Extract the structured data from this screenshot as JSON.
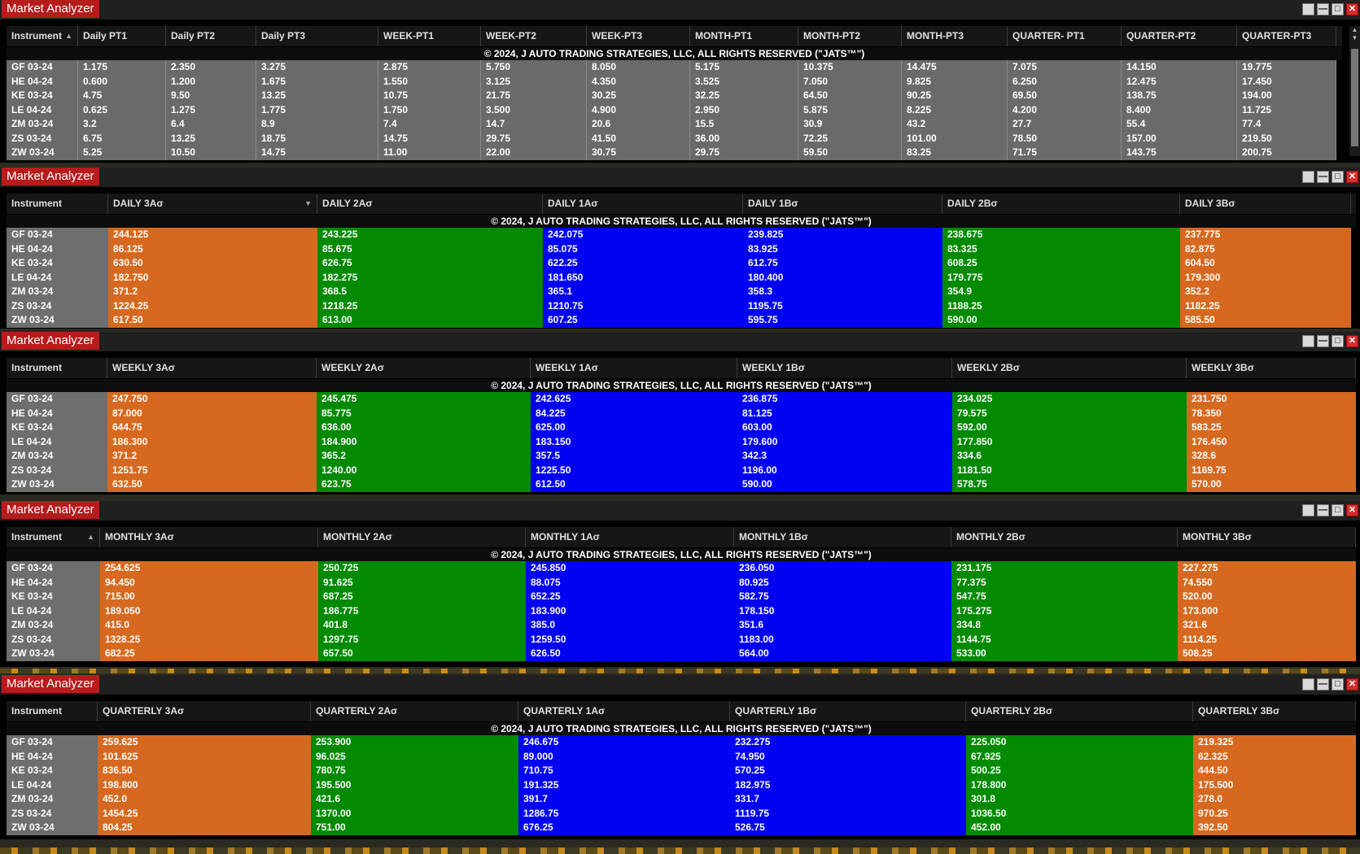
{
  "copyright": "© 2024, J AUTO TRADING STRATEGIES, LLC, ALL RIGHTS RESERVED (\"JATS™\")",
  "colors": {
    "orange": "#d6691f",
    "green": "#038a03",
    "blue": "#0202f2",
    "grey": "#6a6a6a",
    "title": "#b71c1c"
  },
  "windows": [
    {
      "title": "Market Analyzer",
      "headers": [
        "Instrument",
        "Daily PT1",
        "Daily PT2",
        "Daily PT3",
        "WEEK-PT1",
        "WEEK-PT2",
        "WEEK-PT3",
        "MONTH-PT1",
        "MONTH-PT2",
        "MONTH-PT3",
        "QUARTER- PT1",
        "QUARTER-PT2",
        "QUARTER-PT3"
      ],
      "rows": [
        [
          "GF 03-24",
          "1.175",
          "2.350",
          "3.275",
          "2.875",
          "5.750",
          "8.050",
          "5.175",
          "10.375",
          "14.475",
          "7.075",
          "14.150",
          "19.775"
        ],
        [
          "HE 04-24",
          "0.600",
          "1.200",
          "1.675",
          "1.550",
          "3.125",
          "4.350",
          "3.525",
          "7.050",
          "9.825",
          "6.250",
          "12.475",
          "17.450"
        ],
        [
          "KE 03-24",
          "4.75",
          "9.50",
          "13.25",
          "10.75",
          "21.75",
          "30.25",
          "32.25",
          "64.50",
          "90.25",
          "69.50",
          "138.75",
          "194.00"
        ],
        [
          "LE 04-24",
          "0.625",
          "1.275",
          "1.775",
          "1.750",
          "3.500",
          "4.900",
          "2.950",
          "5.875",
          "8.225",
          "4.200",
          "8.400",
          "11.725"
        ],
        [
          "ZM 03-24",
          "3.2",
          "6.4",
          "8.9",
          "7.4",
          "14.7",
          "20.6",
          "15.5",
          "30.9",
          "43.2",
          "27.7",
          "55.4",
          "77.4"
        ],
        [
          "ZS 03-24",
          "6.75",
          "13.25",
          "18.75",
          "14.75",
          "29.75",
          "41.50",
          "36.00",
          "72.25",
          "101.00",
          "78.50",
          "157.00",
          "219.50"
        ],
        [
          "ZW 03-24",
          "5.25",
          "10.50",
          "14.75",
          "11.00",
          "22.00",
          "30.75",
          "29.75",
          "59.50",
          "83.25",
          "71.75",
          "143.75",
          "200.75"
        ]
      ]
    },
    {
      "title": "Market Analyzer",
      "headers": [
        "Instrument",
        "DAILY 3Aσ",
        "DAILY 2Aσ",
        "DAILY 1Aσ",
        "DAILY 1Bσ",
        "DAILY 2Bσ",
        "DAILY 3Bσ"
      ],
      "rows": [
        [
          "GF 03-24",
          "244.125",
          "243.225",
          "242.075",
          "239.825",
          "238.675",
          "237.775"
        ],
        [
          "HE 04-24",
          "86.125",
          "85.675",
          "85.075",
          "83.925",
          "83.325",
          "82.875"
        ],
        [
          "KE 03-24",
          "630.50",
          "626.75",
          "622.25",
          "612.75",
          "608.25",
          "604.50"
        ],
        [
          "LE 04-24",
          "182.750",
          "182.275",
          "181.650",
          "180.400",
          "179.775",
          "179.300"
        ],
        [
          "ZM 03-24",
          "371.2",
          "368.5",
          "365.1",
          "358.3",
          "354.9",
          "352.2"
        ],
        [
          "ZS 03-24",
          "1224.25",
          "1218.25",
          "1210.75",
          "1195.75",
          "1188.25",
          "1182.25"
        ],
        [
          "ZW 03-24",
          "617.50",
          "613.00",
          "607.25",
          "595.75",
          "590.00",
          "585.50"
        ]
      ]
    },
    {
      "title": "Market Analyzer",
      "headers": [
        "Instrument",
        "WEEKLY 3Aσ",
        "WEEKLY 2Aσ",
        "WEEKLY 1Aσ",
        "WEEKLY 1Bσ",
        "WEEKLY 2Bσ",
        "WEEKLY 3Bσ"
      ],
      "rows": [
        [
          "GF 03-24",
          "247.750",
          "245.475",
          "242.625",
          "236.875",
          "234.025",
          "231.750"
        ],
        [
          "HE 04-24",
          "87.000",
          "85.775",
          "84.225",
          "81.125",
          "79.575",
          "78.350"
        ],
        [
          "KE 03-24",
          "644.75",
          "636.00",
          "625.00",
          "603.00",
          "592.00",
          "583.25"
        ],
        [
          "LE 04-24",
          "186.300",
          "184.900",
          "183.150",
          "179.600",
          "177.850",
          "176.450"
        ],
        [
          "ZM 03-24",
          "371.2",
          "365.2",
          "357.5",
          "342.3",
          "334.6",
          "328.6"
        ],
        [
          "ZS 03-24",
          "1251.75",
          "1240.00",
          "1225.50",
          "1196.00",
          "1181.50",
          "1169.75"
        ],
        [
          "ZW 03-24",
          "632.50",
          "623.75",
          "612.50",
          "590.00",
          "578.75",
          "570.00"
        ]
      ]
    },
    {
      "title": "Market Analyzer",
      "headers": [
        "Instrument",
        "MONTHLY 3Aσ",
        "MONTHLY 2Aσ",
        "MONTHLY 1Aσ",
        "MONTHLY 1Bσ",
        "MONTHLY 2Bσ",
        "MONTHLY 3Bσ"
      ],
      "rows": [
        [
          "GF 03-24",
          "254.625",
          "250.725",
          "245.850",
          "236.050",
          "231.175",
          "227.275"
        ],
        [
          "HE 04-24",
          "94.450",
          "91.625",
          "88.075",
          "80.925",
          "77.375",
          "74.550"
        ],
        [
          "KE 03-24",
          "715.00",
          "687.25",
          "652.25",
          "582.75",
          "547.75",
          "520.00"
        ],
        [
          "LE 04-24",
          "189.050",
          "186.775",
          "183.900",
          "178.150",
          "175.275",
          "173.000"
        ],
        [
          "ZM 03-24",
          "415.0",
          "401.8",
          "385.0",
          "351.6",
          "334.8",
          "321.6"
        ],
        [
          "ZS 03-24",
          "1328.25",
          "1297.75",
          "1259.50",
          "1183.00",
          "1144.75",
          "1114.25"
        ],
        [
          "ZW 03-24",
          "682.25",
          "657.50",
          "626.50",
          "564.00",
          "533.00",
          "508.25"
        ]
      ]
    },
    {
      "title": "Market Analyzer",
      "headers": [
        "Instrument",
        "QUARTERLY 3Aσ",
        "QUARTERLY 2Aσ",
        "QUARTERLY 1Aσ",
        "QUARTERLY 1Bσ",
        "QUARTERLY 2Bσ",
        "QUARTERLY 3Bσ"
      ],
      "rows": [
        [
          "GF 03-24",
          "259.625",
          "253.900",
          "246.675",
          "232.275",
          "225.050",
          "219.325"
        ],
        [
          "HE 04-24",
          "101.625",
          "96.025",
          "89.000",
          "74.950",
          "67.925",
          "62.325"
        ],
        [
          "KE 03-24",
          "836.50",
          "780.75",
          "710.75",
          "570.25",
          "500.25",
          "444.50"
        ],
        [
          "LE 04-24",
          "198.800",
          "195.500",
          "191.325",
          "182.975",
          "178.800",
          "175.500"
        ],
        [
          "ZM 03-24",
          "452.0",
          "421.6",
          "391.7",
          "331.7",
          "301.8",
          "278.0"
        ],
        [
          "ZS 03-24",
          "1454.25",
          "1370.00",
          "1286.75",
          "1119.75",
          "1036.50",
          "970.25"
        ],
        [
          "ZW 03-24",
          "804.25",
          "751.00",
          "676.25",
          "526.75",
          "452.00",
          "392.50"
        ]
      ]
    }
  ]
}
